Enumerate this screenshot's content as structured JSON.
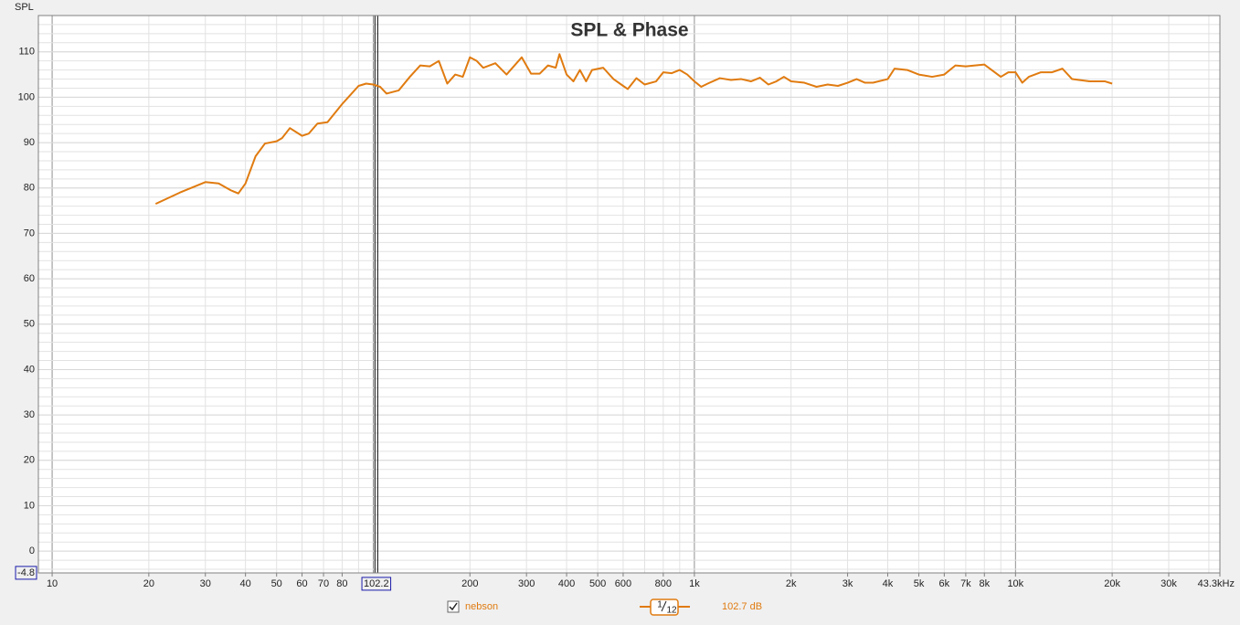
{
  "chart_data": {
    "type": "line",
    "title": "SPL & Phase",
    "y_label": "SPL",
    "log_x": true,
    "xlim": [
      9.06,
      43300
    ],
    "ylim": [
      -4.8,
      118
    ],
    "xticks": [
      10,
      20,
      30,
      40,
      50,
      60,
      70,
      80,
      200,
      300,
      400,
      500,
      600,
      800,
      {
        "value": 1000,
        "label": "1k"
      },
      {
        "value": 2000,
        "label": "2k"
      },
      {
        "value": 3000,
        "label": "3k"
      },
      {
        "value": 4000,
        "label": "4k"
      },
      {
        "value": 5000,
        "label": "5k"
      },
      {
        "value": 6000,
        "label": "6k"
      },
      {
        "value": 7000,
        "label": "7k"
      },
      {
        "value": 8000,
        "label": "8k"
      },
      {
        "value": 10000,
        "label": "10k"
      },
      {
        "value": 20000,
        "label": "20k"
      },
      {
        "value": 30000,
        "label": "30k"
      },
      {
        "value": 43300,
        "label": "43.3kHz"
      }
    ],
    "yticks": [
      0,
      10,
      20,
      30,
      40,
      50,
      60,
      70,
      80,
      90,
      100,
      110
    ],
    "grid": true,
    "cursor": {
      "x": 102.2
    },
    "x": [
      21,
      25,
      30,
      33,
      36,
      38,
      40,
      43,
      46,
      50,
      52,
      55,
      60,
      63,
      67,
      72,
      80,
      90,
      95,
      100,
      105,
      110,
      120,
      130,
      140,
      150,
      160,
      170,
      180,
      190,
      200,
      210,
      220,
      240,
      260,
      290,
      310,
      330,
      350,
      370,
      380,
      400,
      420,
      440,
      460,
      480,
      520,
      560,
      600,
      620,
      660,
      700,
      760,
      800,
      850,
      900,
      950,
      1000,
      1050,
      1100,
      1200,
      1300,
      1400,
      1500,
      1600,
      1700,
      1800,
      1900,
      2000,
      2200,
      2400,
      2600,
      2800,
      3000,
      3200,
      3400,
      3600,
      4000,
      4200,
      4600,
      5000,
      5500,
      6000,
      6500,
      7000,
      8000,
      9000,
      9500,
      10000,
      10500,
      11000,
      12000,
      13000,
      14000,
      15000,
      17000,
      19000,
      20000
    ],
    "series": [
      {
        "name": "nebson",
        "color": "#e07b10",
        "values": [
          76.5,
          79,
          81.3,
          81,
          79.5,
          78.8,
          81,
          87,
          89.8,
          90.3,
          91,
          93.2,
          91.5,
          92,
          94.2,
          94.5,
          98.5,
          102.5,
          103,
          102.8,
          102.3,
          100.8,
          101.5,
          104.5,
          107,
          106.8,
          108,
          103,
          105,
          104.5,
          108.8,
          108,
          106.5,
          107.5,
          105,
          108.8,
          105.2,
          105.2,
          107,
          106.5,
          109.5,
          105,
          103.5,
          106,
          103.5,
          106,
          106.5,
          104,
          102.5,
          101.8,
          104.2,
          102.8,
          103.5,
          105.5,
          105.3,
          106,
          105,
          103.5,
          102.3,
          103,
          104.2,
          103.8,
          104,
          103.5,
          104.3,
          102.8,
          103.5,
          104.5,
          103.5,
          103.2,
          102.3,
          102.8,
          102.5,
          103.2,
          104,
          103.2,
          103.2,
          104,
          106.3,
          106,
          105,
          104.5,
          105,
          107,
          106.8,
          107.2,
          104.5,
          105.5,
          105.5,
          103.2,
          104.5,
          105.5,
          105.5,
          106.3,
          104,
          103.5,
          103.5,
          103
        ]
      }
    ],
    "legend": {
      "smoothing_num": "1",
      "smoothing_den": "12",
      "cursor_value": "102.7 dB"
    }
  }
}
